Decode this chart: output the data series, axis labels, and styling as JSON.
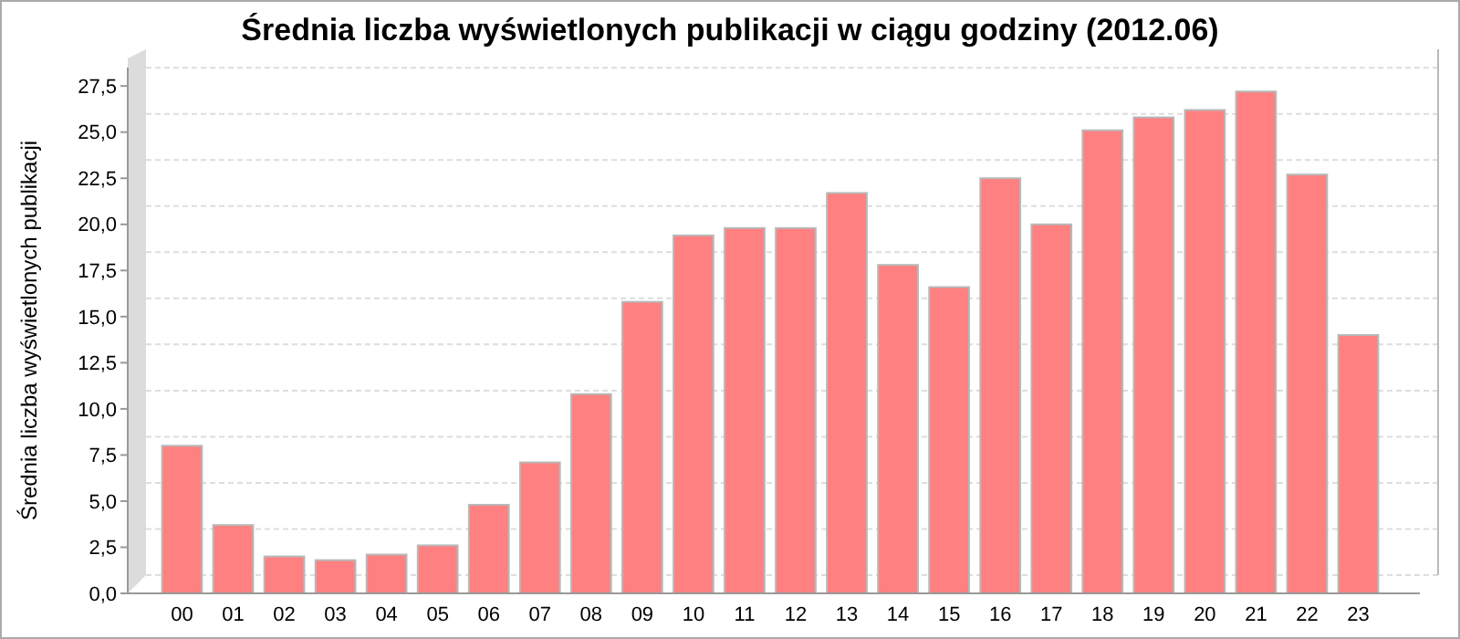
{
  "chart_data": {
    "type": "bar",
    "title": "Średnia liczba wyświetlonych publikacji w ciągu godziny (2012.06)",
    "ylabel": "Średnia liczba wyświetlonych publikacji",
    "categories": [
      "00",
      "01",
      "02",
      "03",
      "04",
      "05",
      "06",
      "07",
      "08",
      "09",
      "10",
      "11",
      "12",
      "13",
      "14",
      "15",
      "16",
      "17",
      "18",
      "19",
      "20",
      "21",
      "22",
      "23"
    ],
    "values": [
      8.0,
      3.7,
      2.0,
      1.8,
      2.1,
      2.6,
      4.8,
      7.1,
      10.8,
      15.8,
      19.4,
      19.8,
      19.8,
      21.7,
      17.8,
      16.6,
      22.5,
      20.0,
      25.1,
      25.8,
      26.2,
      27.2,
      22.7,
      14.0
    ],
    "color": "#ff8080",
    "ylim": [
      0,
      28.5
    ],
    "yticks": [
      {
        "value": 0,
        "label": "0,0"
      },
      {
        "value": 2.5,
        "label": "2,5"
      },
      {
        "value": 5,
        "label": "5,0"
      },
      {
        "value": 7.5,
        "label": "7,5"
      },
      {
        "value": 10,
        "label": "10,0"
      },
      {
        "value": 12.5,
        "label": "12,5"
      },
      {
        "value": 15,
        "label": "15,0"
      },
      {
        "value": 17.5,
        "label": "17,5"
      },
      {
        "value": 20,
        "label": "20,0"
      },
      {
        "value": 22.5,
        "label": "22,5"
      },
      {
        "value": 25,
        "label": "25,0"
      },
      {
        "value": 27.5,
        "label": "27,5"
      }
    ],
    "grid": "y"
  }
}
